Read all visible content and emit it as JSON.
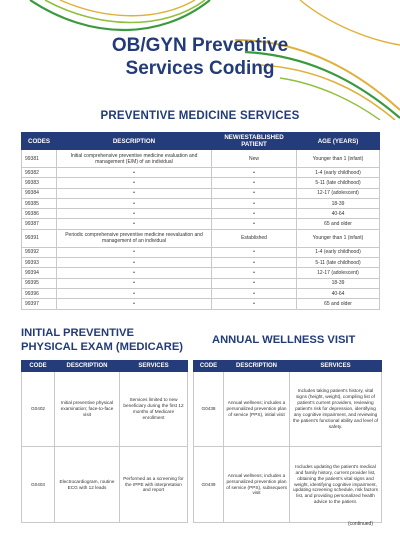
{
  "title": {
    "line1": "OB/GYN Preventive",
    "line2": "Services Coding"
  },
  "preventive": {
    "heading": "PREVENTIVE MEDICINE SERVICES",
    "columns": [
      "CODES",
      "DESCRIPTION",
      "NEW/ESTABLISHED PATIENT",
      "AGE (YEARS)"
    ],
    "rows": [
      {
        "code": "99381",
        "desc": "Initial comprehensive preventive medicine evaluation and management (E/M) of an individual",
        "status": "New",
        "age": "Younger than 1 (infant)"
      },
      {
        "code": "99382",
        "desc": "•",
        "status": "•",
        "age": "1-4 (early childhood)"
      },
      {
        "code": "99383",
        "desc": "•",
        "status": "•",
        "age": "5-11 (late childhood)"
      },
      {
        "code": "99384",
        "desc": "•",
        "status": "•",
        "age": "12-17 (adolescent)"
      },
      {
        "code": "99385",
        "desc": "•",
        "status": "•",
        "age": "18-39"
      },
      {
        "code": "99386",
        "desc": "•",
        "status": "•",
        "age": "40-64"
      },
      {
        "code": "99387",
        "desc": "•",
        "status": "•",
        "age": "65 and older"
      },
      {
        "code": "99391",
        "desc": "Periodic comprehensive preventive medicine reevaluation and management of an individual",
        "status": "Established",
        "age": "Younger than 1 (infant)"
      },
      {
        "code": "99392",
        "desc": "•",
        "status": "•",
        "age": "1-4 (early childhood)"
      },
      {
        "code": "99393",
        "desc": "•",
        "status": "•",
        "age": "5-11 (late childhood)"
      },
      {
        "code": "99394",
        "desc": "•",
        "status": "•",
        "age": "12-17 (adolescent)"
      },
      {
        "code": "99395",
        "desc": "•",
        "status": "•",
        "age": "18-39"
      },
      {
        "code": "99396",
        "desc": "•",
        "status": "•",
        "age": "40-64"
      },
      {
        "code": "99397",
        "desc": "•",
        "status": "•",
        "age": "65 and older"
      }
    ]
  },
  "ippe": {
    "heading": "INITIAL PREVENTIVE PHYSICAL EXAM (MEDICARE)",
    "columns": [
      "CODE",
      "DESCRIPTION",
      "SERVICES"
    ],
    "rows": [
      {
        "code": "G0402",
        "desc": "Initial preventive physical examination; face-to-face visit",
        "services": "Services limited to new beneficiary during the first 12 months of Medicare enrollment"
      },
      {
        "code": "G0403",
        "desc": "Electrocardiogram, routine ECG with 12 leads",
        "services": "Performed as a screening for the IPPE with interpretation and report"
      }
    ]
  },
  "awv": {
    "heading": "ANNUAL WELLNESS VISIT",
    "columns": [
      "CODE",
      "DESCRIPTION",
      "SERVICES"
    ],
    "rows": [
      {
        "code": "G0438",
        "desc": "Annual wellness; includes a personalized prevention plan of service (PPS), initial visit",
        "services": "Includes taking patient's history, vital signs (height, weight), compiling list of patient's current providers, reviewing patient's risk for depression, identifying any cognitive impairment, and reviewing the patient's functional ability and level of safety."
      },
      {
        "code": "G0439",
        "desc": "Annual wellness; includes a personalized prevention plan of service (PPS), subsequent visit",
        "services": "Includes updating the patient's medical and family history, current provider list, obtaining the patient's vital signs and weight, identifying cognitive impairment, updating screening schedule, risk factors list, and providing personalized health advice to the patient."
      }
    ]
  },
  "footer": {
    "continued": "(continued)"
  },
  "colors": {
    "navy": "#243c7a",
    "green": "#3a9a3e",
    "gold": "#e0b13a"
  }
}
